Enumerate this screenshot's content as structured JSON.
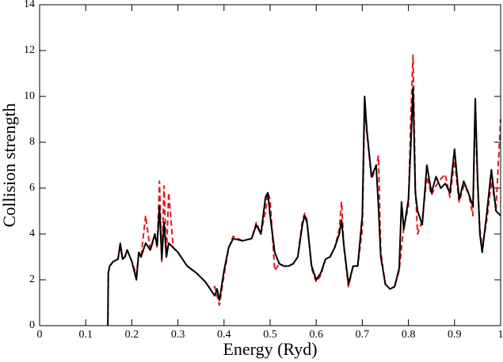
{
  "chart_data": {
    "type": "line",
    "x_label": "Energy (Ryd)",
    "y_label": "Collision strength",
    "xlim": [
      0,
      1
    ],
    "ylim": [
      0,
      14
    ],
    "xticks": [
      0,
      0.1,
      0.2,
      0.3,
      0.4,
      0.5,
      0.6,
      0.7,
      0.8,
      0.9,
      1
    ],
    "yticks": [
      0,
      2,
      4,
      6,
      8,
      10,
      12,
      14
    ],
    "grid": false,
    "x": [
      0.148,
      0.149,
      0.152,
      0.16,
      0.17,
      0.175,
      0.18,
      0.185,
      0.19,
      0.2,
      0.21,
      0.215,
      0.22,
      0.23,
      0.24,
      0.25,
      0.255,
      0.26,
      0.265,
      0.27,
      0.275,
      0.28,
      0.29,
      0.3,
      0.32,
      0.34,
      0.36,
      0.37,
      0.38,
      0.385,
      0.39,
      0.4,
      0.41,
      0.42,
      0.44,
      0.46,
      0.47,
      0.48,
      0.49,
      0.495,
      0.5,
      0.51,
      0.52,
      0.53,
      0.54,
      0.55,
      0.56,
      0.57,
      0.575,
      0.58,
      0.59,
      0.6,
      0.61,
      0.62,
      0.63,
      0.64,
      0.65,
      0.655,
      0.66,
      0.67,
      0.68,
      0.69,
      0.7,
      0.705,
      0.71,
      0.72,
      0.73,
      0.735,
      0.74,
      0.75,
      0.76,
      0.77,
      0.78,
      0.785,
      0.79,
      0.8,
      0.805,
      0.81,
      0.815,
      0.82,
      0.83,
      0.84,
      0.85,
      0.86,
      0.87,
      0.88,
      0.89,
      0.9,
      0.91,
      0.92,
      0.93,
      0.94,
      0.945,
      0.95,
      0.955,
      0.96,
      0.97,
      0.98,
      0.99,
      1.0
    ],
    "series": [
      {
        "color": "#000000",
        "dash": false,
        "values": [
          0,
          2.3,
          2.6,
          2.8,
          2.9,
          3.6,
          2.9,
          3.0,
          3.3,
          2.8,
          2.0,
          3.2,
          3.0,
          3.6,
          3.3,
          4.0,
          3.5,
          5.2,
          2.9,
          4.5,
          3.0,
          3.6,
          3.4,
          3.2,
          2.6,
          2.3,
          1.9,
          1.6,
          1.3,
          1.6,
          1.1,
          2.4,
          3.4,
          3.8,
          3.7,
          3.8,
          4.4,
          4.0,
          5.6,
          5.8,
          4.8,
          3.2,
          2.7,
          2.6,
          2.6,
          2.7,
          3.0,
          4.4,
          4.8,
          4.5,
          2.6,
          2.0,
          2.3,
          2.9,
          3.0,
          3.4,
          4.0,
          4.6,
          3.5,
          1.8,
          2.6,
          2.6,
          4.8,
          10.0,
          8.5,
          6.5,
          7.0,
          5.2,
          3.0,
          1.8,
          1.6,
          1.7,
          2.5,
          5.4,
          4.2,
          5.5,
          7.8,
          10.4,
          5.8,
          5.0,
          4.4,
          7.0,
          5.8,
          6.5,
          6.0,
          6.2,
          5.8,
          7.7,
          5.5,
          6.3,
          5.8,
          5.2,
          9.9,
          6.4,
          4.0,
          3.2,
          4.9,
          6.8,
          5.0,
          4.8
        ]
      },
      {
        "color": "#e8161b",
        "dash": true,
        "values": [
          0,
          2.3,
          2.6,
          2.8,
          2.9,
          3.4,
          2.9,
          3.0,
          3.3,
          2.8,
          2.2,
          3.1,
          3.0,
          4.8,
          3.3,
          3.9,
          3.4,
          6.3,
          2.8,
          6.1,
          3.0,
          5.8,
          3.4,
          3.2,
          2.6,
          2.3,
          1.9,
          1.6,
          1.7,
          1.3,
          0.9,
          2.2,
          3.4,
          3.9,
          3.7,
          3.8,
          4.5,
          4.0,
          5.0,
          5.8,
          5.5,
          2.4,
          2.7,
          2.6,
          2.6,
          2.7,
          3.0,
          4.6,
          4.9,
          4.6,
          2.5,
          1.9,
          2.2,
          2.9,
          3.0,
          3.4,
          4.2,
          5.4,
          3.4,
          1.7,
          2.6,
          2.6,
          4.2,
          9.5,
          8.4,
          6.4,
          6.9,
          7.4,
          3.2,
          1.8,
          1.6,
          1.7,
          2.4,
          3.4,
          4.3,
          5.2,
          9.0,
          11.8,
          6.0,
          4.0,
          4.6,
          6.5,
          5.7,
          6.1,
          6.4,
          6.6,
          5.6,
          7.2,
          5.4,
          6.1,
          5.8,
          4.8,
          9.6,
          6.2,
          4.2,
          3.4,
          4.6,
          6.3,
          5.1,
          9.0
        ]
      }
    ]
  }
}
